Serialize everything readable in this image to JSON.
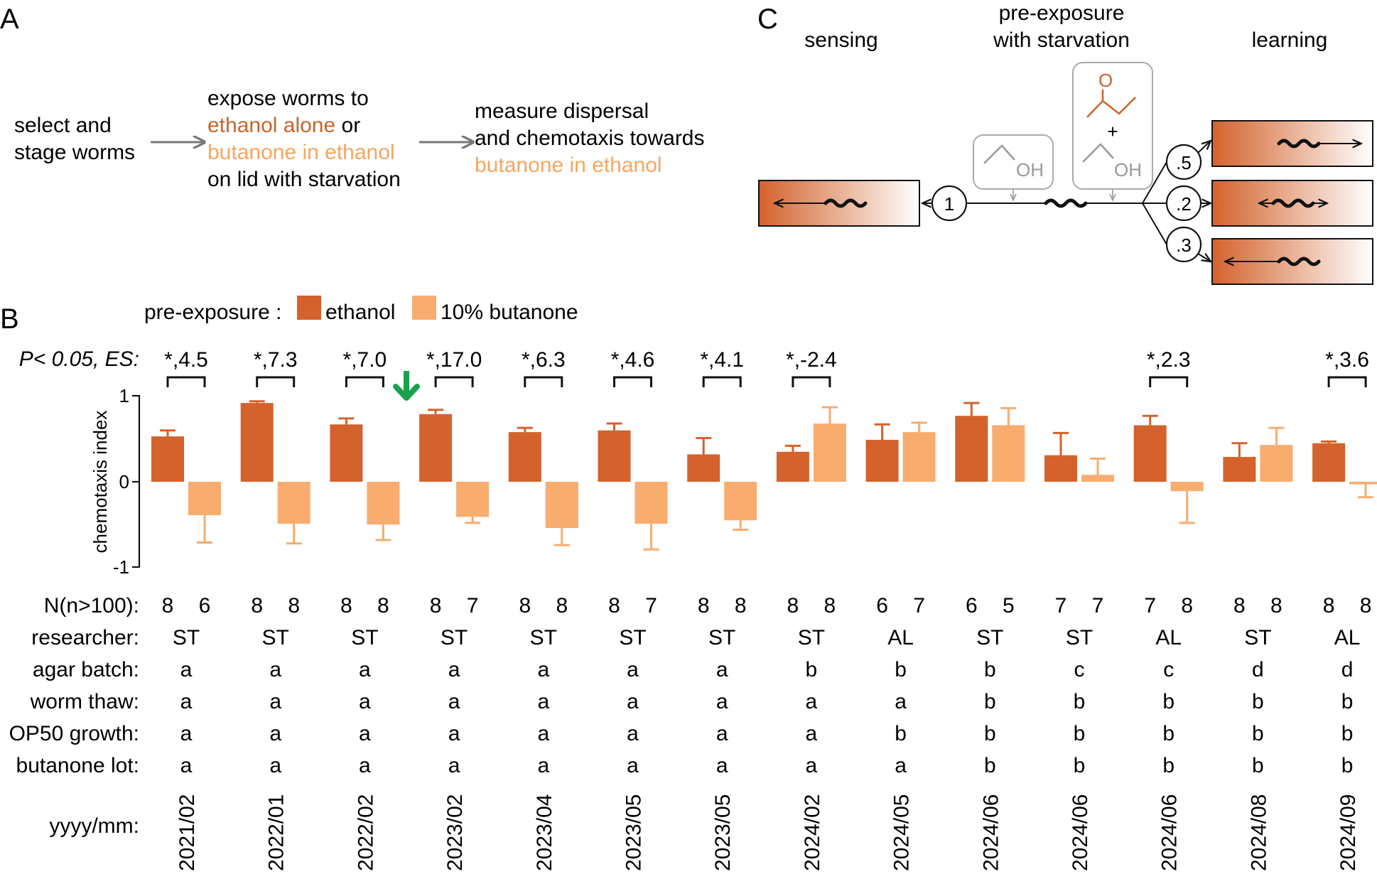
{
  "colors": {
    "ethanol": "#d4622c",
    "butanone": "#f8ac6e",
    "ethanol_text": "#c8642a",
    "butanone_text": "#f5a660",
    "arrow_green": "#17a24b",
    "gray": "#888888"
  },
  "panelA": {
    "letter": "A",
    "step1": [
      "select and",
      "stage worms"
    ],
    "step2_line1": "expose worms to",
    "step2_ethanol": "ethanol alone",
    "step2_or": " or",
    "step2_butanone": "butanone in ethanol",
    "step2_line4": "on lid with starvation",
    "step3_line1": "measure dispersal",
    "step3_line2": "and chemotaxis towards",
    "step3_butanone": "butanone in ethanol"
  },
  "panelB": {
    "letter": "B",
    "legend_prefix": "pre-exposure :",
    "legend_ethanol": "ethanol",
    "legend_butanone": "10% butanone",
    "sig_label": "P< 0.05, ES:",
    "row_labels": [
      "N(n>100):",
      "researcher:",
      "agar batch:",
      "worm thaw:",
      "OP50 growth:",
      "butanone lot:",
      "yyyy/mm:"
    ],
    "experiments": [
      {
        "date": "2021/02",
        "researcher": "ST",
        "agar": "a",
        "thaw": "a",
        "op50": "a",
        "lot": "a",
        "n_eth": "8",
        "n_but": "6",
        "sig": "*,4.5"
      },
      {
        "date": "2022/01",
        "researcher": "ST",
        "agar": "a",
        "thaw": "a",
        "op50": "a",
        "lot": "a",
        "n_eth": "8",
        "n_but": "8",
        "sig": "*,7.3"
      },
      {
        "date": "2022/02",
        "researcher": "ST",
        "agar": "a",
        "thaw": "a",
        "op50": "a",
        "lot": "a",
        "n_eth": "8",
        "n_but": "8",
        "sig": "*,7.0"
      },
      {
        "date": "2023/02",
        "researcher": "ST",
        "agar": "a",
        "thaw": "a",
        "op50": "a",
        "lot": "a",
        "n_eth": "8",
        "n_but": "7",
        "sig": "*,17.0"
      },
      {
        "date": "2023/04",
        "researcher": "ST",
        "agar": "a",
        "thaw": "a",
        "op50": "a",
        "lot": "a",
        "n_eth": "8",
        "n_but": "8",
        "sig": "*,6.3"
      },
      {
        "date": "2023/05",
        "researcher": "ST",
        "agar": "a",
        "thaw": "a",
        "op50": "a",
        "lot": "a",
        "n_eth": "8",
        "n_but": "7",
        "sig": "*,4.6"
      },
      {
        "date": "2023/05",
        "researcher": "ST",
        "agar": "a",
        "thaw": "a",
        "op50": "a",
        "lot": "a",
        "n_eth": "8",
        "n_but": "8",
        "sig": "*,4.1"
      },
      {
        "date": "2024/02",
        "researcher": "ST",
        "agar": "b",
        "thaw": "a",
        "op50": "a",
        "lot": "a",
        "n_eth": "8",
        "n_but": "8",
        "sig": "*,-2.4"
      },
      {
        "date": "2024/05",
        "researcher": "AL",
        "agar": "b",
        "thaw": "a",
        "op50": "b",
        "lot": "a",
        "n_eth": "6",
        "n_but": "7",
        "sig": ""
      },
      {
        "date": "2024/06",
        "researcher": "ST",
        "agar": "b",
        "thaw": "b",
        "op50": "b",
        "lot": "b",
        "n_eth": "6",
        "n_but": "5",
        "sig": ""
      },
      {
        "date": "2024/06",
        "researcher": "ST",
        "agar": "c",
        "thaw": "b",
        "op50": "b",
        "lot": "b",
        "n_eth": "7",
        "n_but": "7",
        "sig": ""
      },
      {
        "date": "2024/06",
        "researcher": "AL",
        "agar": "c",
        "thaw": "b",
        "op50": "b",
        "lot": "b",
        "n_eth": "7",
        "n_but": "8",
        "sig": "*,2.3"
      },
      {
        "date": "2024/08",
        "researcher": "ST",
        "agar": "d",
        "thaw": "b",
        "op50": "b",
        "lot": "b",
        "n_eth": "8",
        "n_but": "8",
        "sig": ""
      },
      {
        "date": "2024/09",
        "researcher": "AL",
        "agar": "d",
        "thaw": "b",
        "op50": "b",
        "lot": "b",
        "n_eth": "8",
        "n_but": "8",
        "sig": "*,3.6"
      }
    ]
  },
  "chart_data": {
    "type": "bar",
    "ylabel": "chemotaxis index",
    "ylim": [
      -1,
      1
    ],
    "yticks": [
      "1",
      "0",
      "-1"
    ],
    "categories": [
      "2021/02",
      "2022/01",
      "2022/02",
      "2023/02",
      "2023/04",
      "2023/05",
      "2023/05",
      "2024/02",
      "2024/05",
      "2024/06",
      "2024/06",
      "2024/06",
      "2024/08",
      "2024/09"
    ],
    "series": [
      {
        "name": "ethanol",
        "values": [
          0.53,
          0.92,
          0.67,
          0.79,
          0.58,
          0.6,
          0.32,
          0.35,
          0.49,
          0.77,
          0.31,
          0.66,
          0.29,
          0.45
        ],
        "error": [
          0.07,
          0.02,
          0.07,
          0.05,
          0.05,
          0.08,
          0.19,
          0.07,
          0.18,
          0.15,
          0.26,
          0.11,
          0.16,
          0.02
        ]
      },
      {
        "name": "10% butanone",
        "values": [
          -0.39,
          -0.49,
          -0.5,
          -0.41,
          -0.54,
          -0.49,
          -0.45,
          0.68,
          0.58,
          0.66,
          0.08,
          -0.11,
          0.43,
          -0.03
        ],
        "error": [
          0.32,
          0.23,
          0.18,
          0.07,
          0.2,
          0.3,
          0.11,
          0.19,
          0.11,
          0.2,
          0.19,
          0.37,
          0.2,
          0.15
        ]
      }
    ]
  },
  "panelC": {
    "letter": "C",
    "label_sensing": "sensing",
    "label_pre1": "pre-exposure",
    "label_pre2": "with starvation",
    "label_learning": "learning",
    "oh": "OH",
    "o_atom": "O",
    "plus": "+",
    "node_sense": "1",
    "node_a": ".5",
    "node_b": ".2",
    "node_c": ".3"
  }
}
